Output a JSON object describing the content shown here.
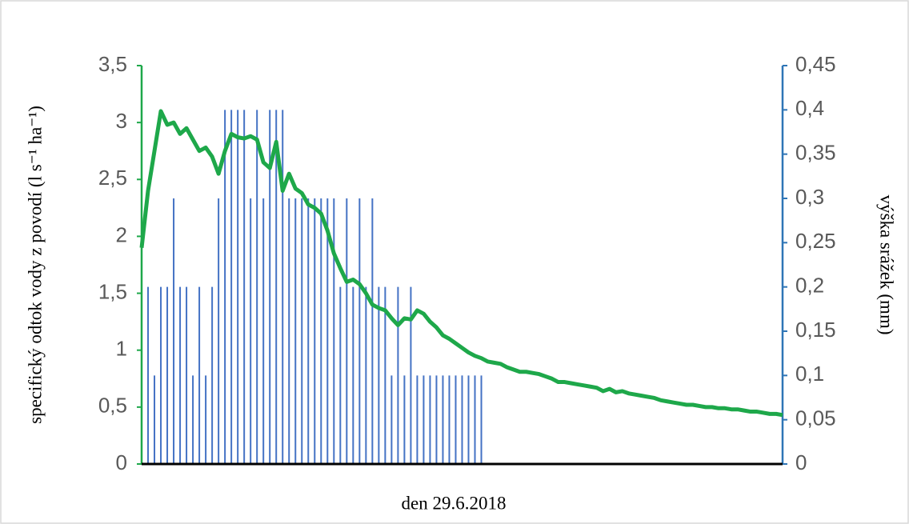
{
  "chart_data": {
    "type": "bar-line",
    "x_label": "den 29.6.2018",
    "y_label": "specifický odtok vody z povodí (l s⁻¹ ha⁻¹)",
    "y2_label": "výška srážek (mm)",
    "categories": [
      null,
      null,
      null,
      null,
      null,
      null,
      null,
      null,
      null,
      null,
      null,
      null,
      null,
      null,
      null,
      null,
      null,
      null,
      null,
      null,
      null,
      null,
      null,
      null,
      null,
      null,
      null,
      null,
      null,
      null,
      null,
      null,
      null,
      null,
      null,
      null,
      null,
      null,
      null,
      null,
      null,
      null,
      null,
      null,
      null,
      null,
      null,
      null,
      null,
      null,
      null,
      null,
      null,
      null,
      null,
      null,
      null,
      null,
      null,
      null,
      null,
      null,
      null,
      null,
      null,
      null,
      null,
      null,
      null,
      null,
      null,
      null,
      null,
      null,
      null,
      null,
      null,
      null,
      null,
      null,
      null,
      null,
      null,
      null,
      null,
      null,
      null,
      null,
      null,
      null,
      null,
      null,
      null,
      null,
      null,
      null,
      null,
      null,
      null,
      null,
      null
    ],
    "series": [
      {
        "type": "bar",
        "axis": "y2",
        "color": "#4472c4",
        "values": [
          0.1,
          0.2,
          0.1,
          0.2,
          0.2,
          0.3,
          0.2,
          0.2,
          0.1,
          0.2,
          0.1,
          0.2,
          0.3,
          0.4,
          0.4,
          0.4,
          0.4,
          0.3,
          0.4,
          0.3,
          0.4,
          0.4,
          0.4,
          0.3,
          0.3,
          0.3,
          0.3,
          0.3,
          0.3,
          0.3,
          0.3,
          0.2,
          0.3,
          0.2,
          0.3,
          0.2,
          0.3,
          0.2,
          0.2,
          0.1,
          0.2,
          0.1,
          0.2,
          0.1,
          0.1,
          0.1,
          0.1,
          0.1,
          0.1,
          0.1,
          0.1,
          0.1,
          0.1,
          0.1,
          0,
          0,
          0,
          0,
          0,
          0,
          0,
          0,
          0,
          0,
          0,
          0,
          0,
          0,
          0,
          0,
          0,
          0,
          0,
          0,
          0,
          0,
          0,
          0,
          0,
          0,
          0,
          0,
          0,
          0,
          0,
          0,
          0,
          0,
          0,
          0,
          0,
          0,
          0,
          0,
          0,
          0,
          0,
          0,
          0,
          0,
          0
        ]
      },
      {
        "type": "line",
        "axis": "y",
        "color": "#1ea84a",
        "values": [
          1.9,
          2.4,
          2.75,
          3.1,
          2.98,
          3.0,
          2.9,
          2.95,
          2.85,
          2.75,
          2.78,
          2.7,
          2.55,
          2.75,
          2.9,
          2.87,
          2.86,
          2.88,
          2.85,
          2.65,
          2.6,
          2.83,
          2.4,
          2.55,
          2.42,
          2.38,
          2.28,
          2.25,
          2.2,
          2.05,
          1.85,
          1.72,
          1.6,
          1.62,
          1.58,
          1.5,
          1.4,
          1.37,
          1.35,
          1.28,
          1.22,
          1.28,
          1.27,
          1.35,
          1.32,
          1.25,
          1.2,
          1.13,
          1.1,
          1.06,
          1.02,
          0.98,
          0.95,
          0.93,
          0.9,
          0.89,
          0.88,
          0.85,
          0.83,
          0.81,
          0.81,
          0.8,
          0.79,
          0.77,
          0.75,
          0.72,
          0.72,
          0.71,
          0.7,
          0.69,
          0.68,
          0.67,
          0.64,
          0.66,
          0.63,
          0.64,
          0.62,
          0.61,
          0.6,
          0.59,
          0.58,
          0.56,
          0.55,
          0.54,
          0.53,
          0.52,
          0.52,
          0.51,
          0.5,
          0.5,
          0.49,
          0.49,
          0.48,
          0.48,
          0.47,
          0.46,
          0.46,
          0.45,
          0.44,
          0.44,
          0.43
        ]
      }
    ],
    "ylim": [
      0,
      3.5
    ],
    "yticks": [
      0,
      {
        "value": 0.5,
        "label": "0,5"
      },
      1,
      {
        "value": 1.5,
        "label": "1,5"
      },
      2,
      {
        "value": 2.5,
        "label": "2,5"
      },
      3,
      {
        "value": 3.5,
        "label": "3,5"
      }
    ],
    "y2lim": [
      0,
      0.45
    ],
    "y2ticks": [
      0,
      {
        "value": 0.05,
        "label": "0,05"
      },
      {
        "value": 0.1,
        "label": "0,1"
      },
      {
        "value": 0.15,
        "label": "0,15"
      },
      {
        "value": 0.2,
        "label": "0,2"
      },
      {
        "value": 0.25,
        "label": "0,25"
      },
      {
        "value": 0.3,
        "label": "0,3"
      },
      {
        "value": 0.35,
        "label": "0,35"
      },
      {
        "value": 0.4,
        "label": "0,4"
      },
      {
        "value": 0.45,
        "label": "0,45"
      }
    ],
    "y_axis_color": "#1ea84a",
    "y2_axis_color": "#2e75b6",
    "grid": false
  }
}
